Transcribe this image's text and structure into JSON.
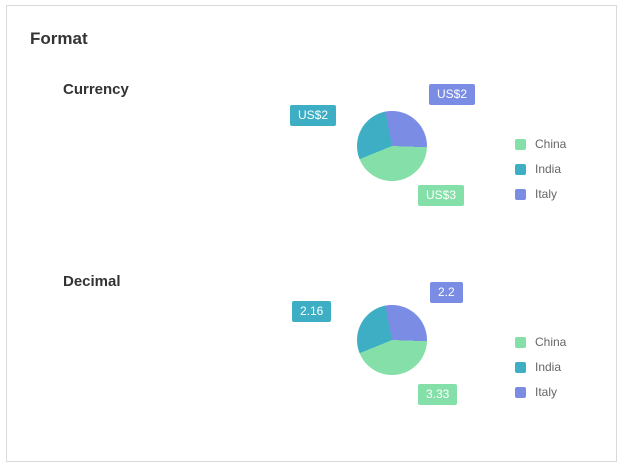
{
  "page": {
    "title": "Format"
  },
  "colors": {
    "china": "#84DFA8",
    "india": "#3DAEC4",
    "italy": "#7B8CE5",
    "card_border": "#dadada",
    "heading_text": "#333333",
    "legend_text": "#666666",
    "label_text": "#ffffff"
  },
  "chart_data": [
    {
      "type": "pie",
      "title": "Currency",
      "label_format": "currency",
      "categories": [
        "China",
        "India",
        "Italy"
      ],
      "values": [
        3.33,
        2.16,
        2.2
      ],
      "labels": [
        "US$3",
        "US$2",
        "US$2"
      ],
      "colors": [
        "#84DFA8",
        "#3DAEC4",
        "#7B8CE5"
      ],
      "legend_position": "right",
      "legend": [
        "China",
        "India",
        "Italy"
      ]
    },
    {
      "type": "pie",
      "title": "Decimal",
      "label_format": "decimal",
      "categories": [
        "China",
        "India",
        "Italy"
      ],
      "values": [
        3.33,
        2.16,
        2.2
      ],
      "labels": [
        "3.33",
        "2.16",
        "2.2"
      ],
      "colors": [
        "#84DFA8",
        "#3DAEC4",
        "#7B8CE5"
      ],
      "legend_position": "right",
      "legend": [
        "China",
        "India",
        "Italy"
      ]
    }
  ]
}
